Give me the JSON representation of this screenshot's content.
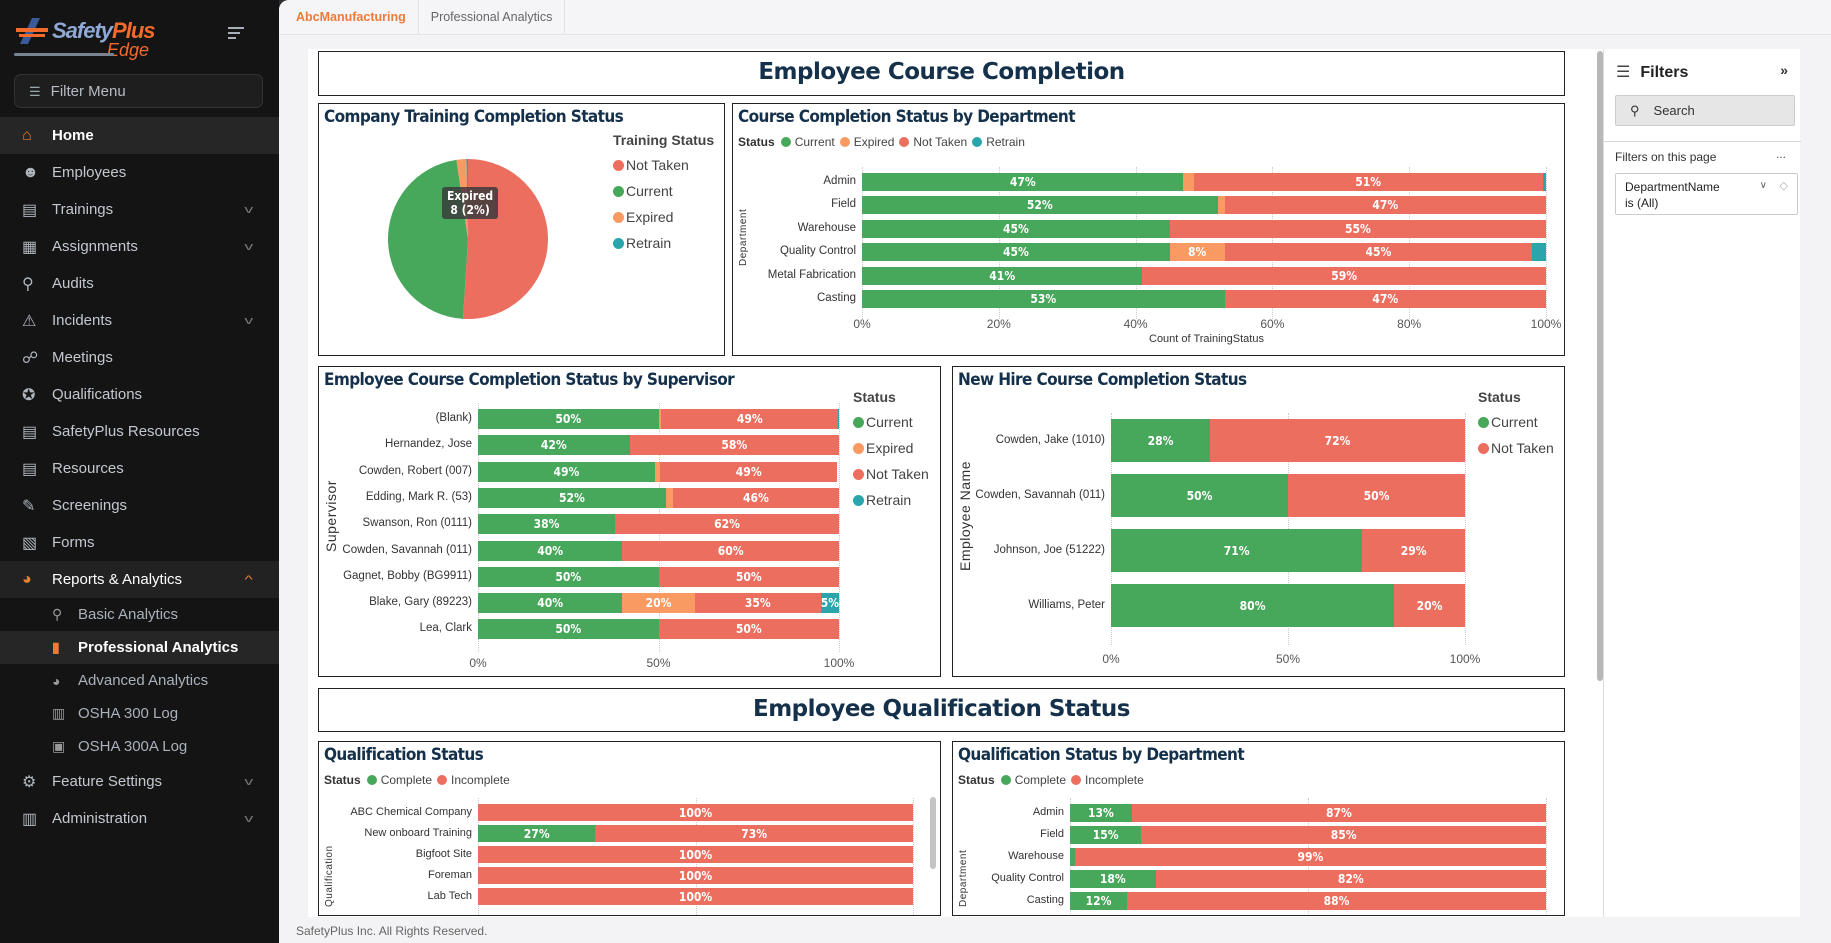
{
  "brand": {
    "name_a": "Safety",
    "name_b": "Plus",
    "name_c": "Edge"
  },
  "sidebar": {
    "filter_menu": "Filter Menu",
    "items": [
      {
        "label": "Home",
        "icon": "home-icon",
        "state": "active"
      },
      {
        "label": "Employees",
        "icon": "users-icon"
      },
      {
        "label": "Trainings",
        "icon": "book-icon",
        "chevron": "down"
      },
      {
        "label": "Assignments",
        "icon": "calendar-check-icon",
        "chevron": "down"
      },
      {
        "label": "Audits",
        "icon": "search-icon"
      },
      {
        "label": "Incidents",
        "icon": "warning-icon",
        "chevron": "down"
      },
      {
        "label": "Meetings",
        "icon": "handshake-icon"
      },
      {
        "label": "Qualifications",
        "icon": "certificate-icon"
      },
      {
        "label": "SafetyPlus Resources",
        "icon": "book-icon"
      },
      {
        "label": "Resources",
        "icon": "book-icon"
      },
      {
        "label": "Screenings",
        "icon": "syringe-icon"
      },
      {
        "label": "Forms",
        "icon": "file-icon"
      },
      {
        "label": "Reports & Analytics",
        "icon": "pie-chart-icon",
        "chevron": "up",
        "state": "open",
        "children": [
          {
            "label": "Basic Analytics",
            "icon": "search-chart-icon"
          },
          {
            "label": "Professional Analytics",
            "icon": "bar-chart-icon",
            "state": "active"
          },
          {
            "label": "Advanced Analytics",
            "icon": "pie-chart-icon"
          },
          {
            "label": "OSHA 300 Log",
            "icon": "building-icon"
          },
          {
            "label": "OSHA 300A Log",
            "icon": "id-card-icon"
          }
        ]
      },
      {
        "label": "Feature Settings",
        "icon": "gear-icon",
        "chevron": "down"
      },
      {
        "label": "Administration",
        "icon": "building-icon",
        "chevron": "down"
      }
    ]
  },
  "tabs": {
    "company": "AbcManufacturing",
    "page": "Professional Analytics"
  },
  "colors": {
    "Current": "#47a75a",
    "Expired": "#f99a63",
    "Not Taken": "#ec6e5f",
    "Retrain": "#2aa5ab",
    "Complete": "#47a75a",
    "Incomplete": "#ec6e5f"
  },
  "sections": {
    "course": "Employee Course Completion",
    "qual": "Employee Qualification Status"
  },
  "chart_data": [
    {
      "id": "pie",
      "type": "pie",
      "title": "Company Training Completion Status",
      "legend_title": "Training Status",
      "categories": [
        "Not Taken",
        "Current",
        "Expired",
        "Retrain"
      ],
      "values": [
        51,
        46.7,
        2,
        0.3
      ],
      "tooltip": {
        "line1": "Expired",
        "line2": "8 (2%)"
      }
    },
    {
      "id": "dept",
      "type": "bar",
      "title": "Course Completion Status by Department",
      "legend_title": "Status",
      "series_names": [
        "Current",
        "Expired",
        "Not Taken",
        "Retrain"
      ],
      "categories": [
        "Admin",
        "Field",
        "Warehouse",
        "Quality Control",
        "Metal Fabrication",
        "Casting"
      ],
      "values": [
        [
          47,
          1.5,
          51,
          0.5
        ],
        [
          52,
          1,
          47,
          0
        ],
        [
          45,
          0,
          55,
          0
        ],
        [
          45,
          8,
          45,
          2
        ],
        [
          41,
          0,
          59,
          0
        ],
        [
          53,
          0,
          47,
          0
        ]
      ],
      "xticks": [
        "0%",
        "20%",
        "40%",
        "60%",
        "80%",
        "100%"
      ],
      "xlabel": "Count of TrainingStatus",
      "ylabel": "Department",
      "xlim": [
        0,
        100
      ]
    },
    {
      "id": "sup",
      "type": "bar",
      "title": "Employee Course Completion Status by Supervisor",
      "legend_title": "Status",
      "series_names": [
        "Current",
        "Expired",
        "Not Taken",
        "Retrain"
      ],
      "categories": [
        "(Blank)",
        "Hernandez, Jose",
        "Cowden, Robert (007)",
        "Edding, Mark R. (53)",
        "Swanson, Ron (0111)",
        "Cowden, Savannah (011)",
        "Gagnet, Bobby (BG9911)",
        "Blake, Gary (89223)",
        "Lea, Clark"
      ],
      "values": [
        [
          50,
          0.8,
          49,
          0.2
        ],
        [
          42,
          0,
          58,
          0
        ],
        [
          49,
          1.5,
          49,
          0
        ],
        [
          52,
          2,
          46,
          0
        ],
        [
          38,
          0,
          62,
          0
        ],
        [
          40,
          0,
          60,
          0
        ],
        [
          50,
          0,
          50,
          0
        ],
        [
          40,
          20,
          35,
          5
        ],
        [
          50,
          0,
          50,
          0
        ]
      ],
      "xticks": [
        "0%",
        "50%",
        "100%"
      ],
      "xlabel": "",
      "ylabel": "Supervisor",
      "xlim": [
        0,
        100
      ]
    },
    {
      "id": "hire",
      "type": "bar",
      "title": "New Hire Course Completion Status",
      "legend_title": "Status",
      "series_names": [
        "Current",
        "Not Taken"
      ],
      "categories": [
        "Cowden, Jake (1010)",
        "Cowden, Savannah (011)",
        "Johnson, Joe (51222)",
        "Williams, Peter"
      ],
      "values": [
        [
          28,
          72
        ],
        [
          50,
          50
        ],
        [
          71,
          29
        ],
        [
          80,
          20
        ]
      ],
      "xticks": [
        "0%",
        "50%",
        "100%"
      ],
      "xlabel": "",
      "ylabel": "Employee Name",
      "xlim": [
        0,
        100
      ]
    },
    {
      "id": "qual",
      "type": "bar",
      "title": "Qualification Status",
      "legend_title": "Status",
      "series_names": [
        "Complete",
        "Incomplete"
      ],
      "categories": [
        "ABC Chemical Company",
        "New onboard Training",
        "Bigfoot Site",
        "Foreman",
        "Lab Tech"
      ],
      "values": [
        [
          0,
          100
        ],
        [
          27,
          73
        ],
        [
          0,
          100
        ],
        [
          0,
          100
        ],
        [
          0,
          100
        ]
      ],
      "xticks": [],
      "xlabel": "",
      "ylabel": "Qualification",
      "xlim": [
        0,
        100
      ]
    },
    {
      "id": "qdept",
      "type": "bar",
      "title": "Qualification Status by Department",
      "legend_title": "Status",
      "series_names": [
        "Complete",
        "Incomplete"
      ],
      "categories": [
        "Admin",
        "Field",
        "Warehouse",
        "Quality Control",
        "Casting"
      ],
      "values": [
        [
          13,
          87
        ],
        [
          15,
          85
        ],
        [
          1,
          99
        ],
        [
          18,
          82
        ],
        [
          12,
          88
        ]
      ],
      "xticks": [],
      "xlabel": "",
      "ylabel": "Department",
      "xlim": [
        0,
        100
      ]
    }
  ],
  "filters": {
    "title": "Filters",
    "search_placeholder": "Search",
    "on_page": "Filters on this page",
    "more": "...",
    "card_field": "DepartmentName",
    "card_value": "is (All)"
  },
  "footer": "SafetyPlus Inc. All Rights Reserved."
}
